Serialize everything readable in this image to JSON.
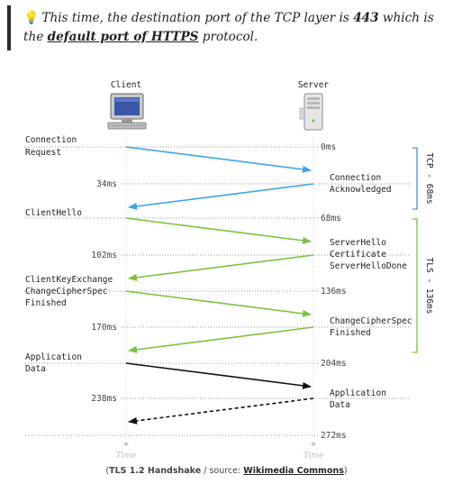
{
  "note": {
    "icon": "lightbulb-icon",
    "text_before": "This time, the destination port of the TCP layer is ",
    "port": "443",
    "text_middle": " which is the ",
    "link_text": "default port of HTTPS",
    "text_after": " protocol."
  },
  "diagram": {
    "client_title": "Client",
    "server_title": "Server",
    "left_labels": [
      {
        "lines": [
          "Connection",
          "Request"
        ]
      },
      {
        "lines": [
          "ClientHello"
        ]
      },
      {
        "lines": [
          "ClientKeyExchange",
          "ChangeCipherSpec",
          "Finished"
        ]
      },
      {
        "lines": [
          "Application",
          "Data"
        ]
      }
    ],
    "right_labels": [
      {
        "lines": [
          "Connection",
          "Acknowledged"
        ]
      },
      {
        "lines": [
          "ServerHello",
          "Certificate",
          "ServerHelloDone"
        ]
      },
      {
        "lines": [
          "ChangeCipherSpec",
          "Finished"
        ]
      },
      {
        "lines": [
          "Application",
          "Data"
        ]
      }
    ],
    "server_times": [
      "0ms",
      "68ms",
      "136ms",
      "204ms",
      "272ms"
    ],
    "client_times": [
      "34ms",
      "102ms",
      "170ms",
      "238ms"
    ],
    "brackets": [
      {
        "label": "TCP - 68ms",
        "color": "#4a90d9"
      },
      {
        "label": "TLS - 136ms",
        "color": "#7ac143"
      }
    ],
    "arrow_colors": {
      "tcp": "#3ba3e6",
      "tls": "#7ac143",
      "data": "#111111"
    },
    "time_axis_label": "Time"
  },
  "caption": {
    "prefix": "(",
    "title": "TLS 1.2 Handshake",
    "middle": " / source: ",
    "source": "Wikimedia Commons",
    "suffix": ")"
  }
}
